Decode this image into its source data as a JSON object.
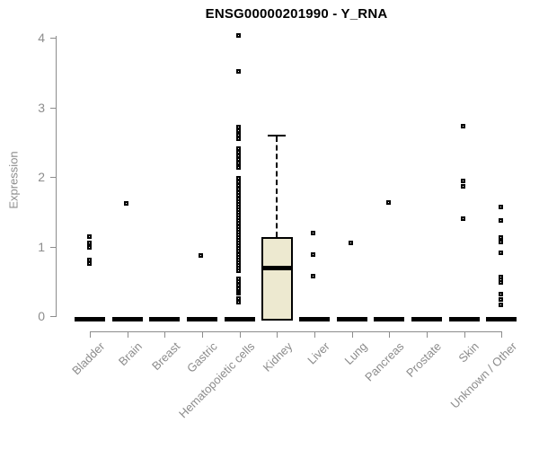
{
  "chart_data": {
    "type": "box",
    "title": "ENSG00000201990 - Y_RNA",
    "ylabel": "Expression",
    "xlabel": "",
    "ylim": [
      0,
      4
    ],
    "yticks": [
      0,
      1,
      2,
      3,
      4
    ],
    "grid": false,
    "legend": "none",
    "categories": [
      "Bladder",
      "Brain",
      "Breast",
      "Gastric",
      "Hematopoietic cells",
      "Kidney",
      "Liver",
      "Lung",
      "Pancreas",
      "Prostate",
      "Skin",
      "Unknown / Other"
    ],
    "boxes": [
      {
        "category": "Bladder",
        "median": 0,
        "q1": 0,
        "q3": 0,
        "whisker_low": 0,
        "whisker_high": 0,
        "outliers": [
          1.14,
          1.05,
          0.99,
          0.81,
          0.75
        ]
      },
      {
        "category": "Brain",
        "median": 0,
        "q1": 0,
        "q3": 0,
        "whisker_low": 0,
        "whisker_high": 0,
        "outliers": [
          1.62
        ]
      },
      {
        "category": "Breast",
        "median": 0,
        "q1": 0,
        "q3": 0,
        "whisker_low": 0,
        "whisker_high": 0,
        "outliers": []
      },
      {
        "category": "Gastric",
        "median": 0,
        "q1": 0,
        "q3": 0,
        "whisker_low": 0,
        "whisker_high": 0,
        "outliers": [
          0.87
        ]
      },
      {
        "category": "Hematopoietic cells",
        "median": 0,
        "q1": 0,
        "q3": 0,
        "whisker_low": 0,
        "whisker_high": 0,
        "outliers": [
          4.03,
          3.51,
          2.71,
          2.66,
          2.6,
          2.55,
          2.41,
          2.36,
          2.3,
          2.25,
          2.2,
          2.14,
          1.98,
          1.93,
          1.88,
          1.83,
          1.77,
          1.73,
          1.69,
          1.65,
          1.61,
          1.57,
          1.53,
          1.49,
          1.45,
          1.41,
          1.37,
          1.33,
          1.29,
          1.25,
          1.21,
          1.17,
          1.13,
          1.09,
          1.05,
          1.01,
          0.97,
          0.93,
          0.89,
          0.85,
          0.81,
          0.77,
          0.73,
          0.69,
          0.65,
          0.54,
          0.5,
          0.44,
          0.4,
          0.36,
          0.33,
          0.25,
          0.2
        ]
      },
      {
        "category": "Kidney",
        "median": 0.7,
        "q1": 0,
        "q3": 1.14,
        "whisker_low": 0,
        "whisker_high": 2.58,
        "outliers": []
      },
      {
        "category": "Liver",
        "median": 0,
        "q1": 0,
        "q3": 0,
        "whisker_low": 0,
        "whisker_high": 0,
        "outliers": [
          1.19,
          0.88,
          0.58
        ]
      },
      {
        "category": "Lung",
        "median": 0,
        "q1": 0,
        "q3": 0,
        "whisker_low": 0,
        "whisker_high": 0,
        "outliers": [
          1.05
        ]
      },
      {
        "category": "Pancreas",
        "median": 0,
        "q1": 0,
        "q3": 0,
        "whisker_low": 0,
        "whisker_high": 0,
        "outliers": [
          1.63
        ]
      },
      {
        "category": "Prostate",
        "median": 0,
        "q1": 0,
        "q3": 0,
        "whisker_low": 0,
        "whisker_high": 0,
        "outliers": []
      },
      {
        "category": "Skin",
        "median": 0,
        "q1": 0,
        "q3": 0,
        "whisker_low": 0,
        "whisker_high": 0,
        "outliers": [
          2.73,
          1.94,
          1.86,
          1.4
        ]
      },
      {
        "category": "Unknown / Other",
        "median": 0,
        "q1": 0,
        "q3": 0,
        "whisker_low": 0,
        "whisker_high": 0,
        "outliers": [
          1.57,
          1.38,
          1.13,
          1.07,
          0.91,
          0.56,
          0.52,
          0.48,
          0.32,
          0.24,
          0.16
        ]
      }
    ],
    "colors": {
      "box_fill": "#EDE9D0",
      "box_line": "#000000",
      "point": "#000000",
      "axis": "#8C8C8C",
      "text_gray": "#8C8C8C",
      "title": "#000000",
      "background": "#FFFFFF"
    }
  }
}
